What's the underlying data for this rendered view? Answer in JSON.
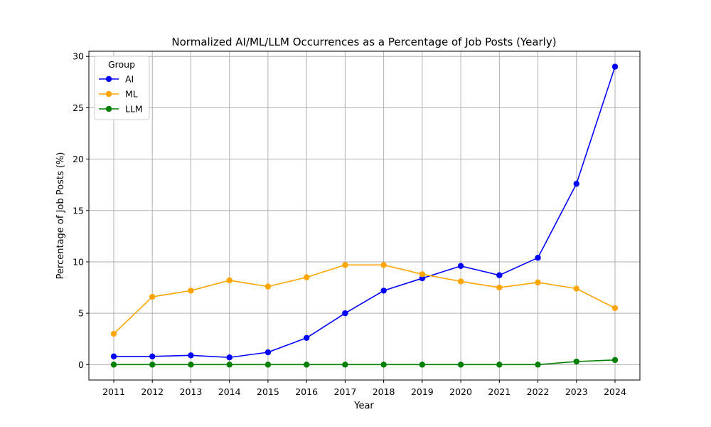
{
  "chart_data": {
    "type": "line",
    "title": "Normalized AI/ML/LLM Occurrences as a Percentage of Job Posts (Yearly)",
    "xlabel": "Year",
    "ylabel": "Percentage of Job Posts (%)",
    "x": [
      "2011",
      "2012",
      "2013",
      "2014",
      "2015",
      "2016",
      "2017",
      "2018",
      "2019",
      "2020",
      "2021",
      "2022",
      "2023",
      "2024"
    ],
    "ylim": [
      -1.5,
      30.5
    ],
    "yticks": [
      0,
      5,
      10,
      15,
      20,
      25,
      30
    ],
    "grid": true,
    "legend": {
      "title": "Group",
      "placement": "top-left"
    },
    "series": [
      {
        "name": "AI",
        "color": "#0000ff",
        "values": [
          0.8,
          0.8,
          0.9,
          0.7,
          1.2,
          2.6,
          5.0,
          7.2,
          8.4,
          9.6,
          8.7,
          10.4,
          17.6,
          29.0
        ]
      },
      {
        "name": "ML",
        "color": "#ffa500",
        "values": [
          3.0,
          6.6,
          7.2,
          8.2,
          7.6,
          8.5,
          9.7,
          9.7,
          8.8,
          8.1,
          7.5,
          8.0,
          7.4,
          5.5
        ]
      },
      {
        "name": "LLM",
        "color": "#008000",
        "values": [
          0.0,
          0.0,
          0.0,
          0.0,
          0.0,
          0.0,
          0.0,
          0.0,
          0.0,
          0.0,
          0.0,
          0.0,
          0.3,
          0.45
        ]
      }
    ]
  }
}
